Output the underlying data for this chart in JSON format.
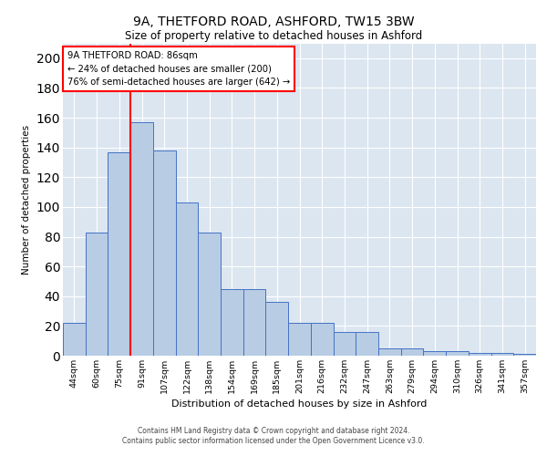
{
  "title1": "9A, THETFORD ROAD, ASHFORD, TW15 3BW",
  "title2": "Size of property relative to detached houses in Ashford",
  "xlabel": "Distribution of detached houses by size in Ashford",
  "ylabel": "Number of detached properties",
  "footer1": "Contains HM Land Registry data © Crown copyright and database right 2024.",
  "footer2": "Contains public sector information licensed under the Open Government Licence v3.0.",
  "annotation_line1": "9A THETFORD ROAD: 86sqm",
  "annotation_line2": "← 24% of detached houses are smaller (200)",
  "annotation_line3": "76% of semi-detached houses are larger (642) →",
  "bar_values": [
    22,
    83,
    137,
    157,
    138,
    103,
    83,
    45,
    45,
    36,
    22,
    22,
    16,
    16,
    5,
    5,
    3,
    3,
    2,
    2,
    1
  ],
  "bar_labels": [
    "44sqm",
    "60sqm",
    "75sqm",
    "91sqm",
    "107sqm",
    "122sqm",
    "138sqm",
    "154sqm",
    "169sqm",
    "185sqm",
    "201sqm",
    "216sqm",
    "232sqm",
    "247sqm",
    "263sqm",
    "279sqm",
    "294sqm",
    "310sqm",
    "326sqm",
    "341sqm",
    "357sqm"
  ],
  "bar_color": "#b8cce4",
  "bar_edge_color": "#4472c4",
  "vline_position": 2.5,
  "vline_color": "red",
  "background_color": "#dce6f1",
  "grid_color": "#ffffff",
  "ylim": [
    0,
    210
  ],
  "yticks": [
    0,
    20,
    40,
    60,
    80,
    100,
    120,
    140,
    160,
    180,
    200
  ]
}
